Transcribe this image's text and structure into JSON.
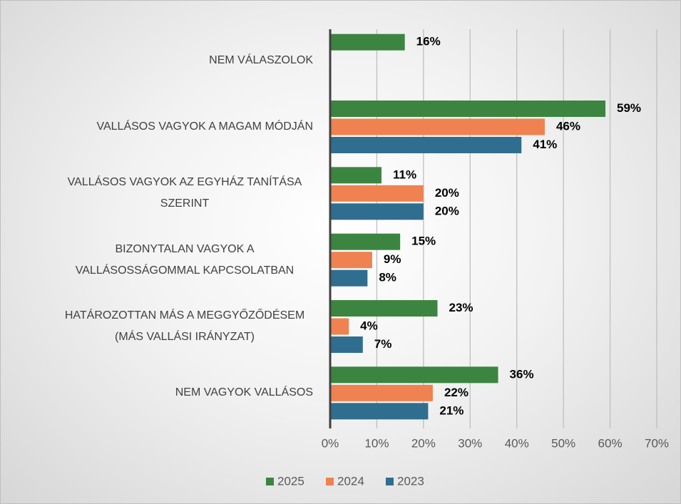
{
  "chart_data": {
    "type": "barh",
    "categories": [
      "NEM VÁLASZOLOK",
      "VALLÁSOS VAGYOK A MAGAM MÓDJÁN",
      "VALLÁSOS VAGYOK AZ EGYHÁZ TANÍTÁSA SZERINT",
      "BIZONYTALAN VAGYOK A VALLÁSOSSÁGOMMAL KAPCSOLATBAN",
      "HATÁROZOTTAN MÁS A MEGGYŐZŐDÉSEM (MÁS VALLÁSI IRÁNYZAT)",
      "NEM VAGYOK VALLÁSOS"
    ],
    "series": [
      {
        "name": "2025",
        "color": "#3b8540",
        "values": [
          16,
          59,
          11,
          15,
          23,
          36
        ],
        "value_labels": [
          "16%",
          "59%",
          "11%",
          "15%",
          "23%",
          "36%"
        ]
      },
      {
        "name": "2024",
        "color": "#ef8250",
        "values": [
          null,
          46,
          20,
          9,
          4,
          22
        ],
        "value_labels": [
          null,
          "46%",
          "20%",
          "9%",
          "4%",
          "22%"
        ]
      },
      {
        "name": "2023",
        "color": "#2f6e8f",
        "values": [
          null,
          41,
          20,
          8,
          7,
          21
        ],
        "value_labels": [
          null,
          "41%",
          "20%",
          "8%",
          "7%",
          "21%"
        ]
      }
    ],
    "xlim": [
      0,
      70
    ],
    "xticks": [
      {
        "value": 0,
        "label": "0%"
      },
      {
        "value": 10,
        "label": "10%"
      },
      {
        "value": 20,
        "label": "20%"
      },
      {
        "value": 30,
        "label": "30%"
      },
      {
        "value": 40,
        "label": "40%"
      },
      {
        "value": 50,
        "label": "50%"
      },
      {
        "value": 60,
        "label": "60%"
      },
      {
        "value": 70,
        "label": "70%"
      }
    ],
    "grid": true,
    "legend": "bottom"
  }
}
